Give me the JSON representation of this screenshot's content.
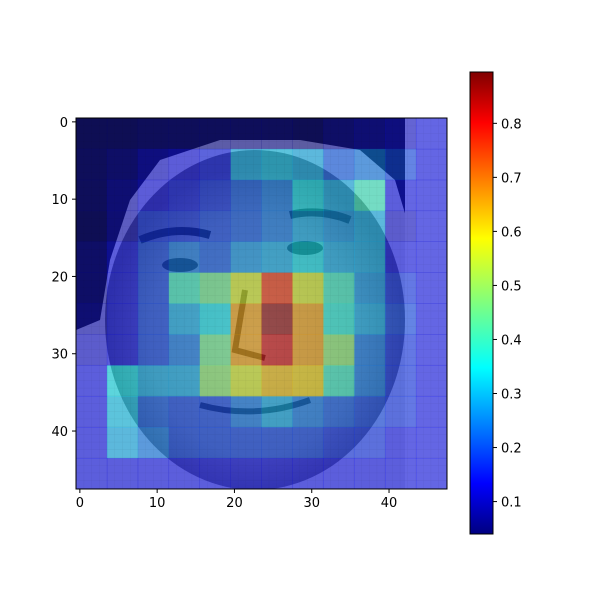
{
  "chart_data": {
    "type": "heatmap",
    "title": "",
    "xlabel": "",
    "ylabel": "",
    "xlim": [
      -0.5,
      47.5
    ],
    "ylim": [
      47.5,
      -0.5
    ],
    "x_ticks": [
      "0",
      "10",
      "20",
      "30",
      "40"
    ],
    "y_ticks": [
      "0",
      "10",
      "20",
      "30",
      "40"
    ],
    "background_image": "grayscale face photograph, 48x48 pixels, overlaid with a semi-transparent heatmap",
    "overlay_alpha": 0.5,
    "cell_size": 4,
    "grid_rows": 12,
    "grid_cols": 12,
    "values": [
      [
        0.05,
        0.05,
        0.06,
        0.06,
        0.06,
        0.06,
        0.06,
        0.05,
        0.08,
        0.1,
        0.12,
        0.15
      ],
      [
        0.06,
        0.08,
        0.12,
        0.14,
        0.16,
        0.3,
        0.32,
        0.3,
        0.22,
        0.25,
        0.2,
        0.15
      ],
      [
        0.06,
        0.1,
        0.14,
        0.16,
        0.18,
        0.22,
        0.25,
        0.35,
        0.3,
        0.4,
        0.15,
        0.15
      ],
      [
        0.05,
        0.1,
        0.18,
        0.18,
        0.2,
        0.22,
        0.25,
        0.3,
        0.28,
        0.3,
        0.12,
        0.15
      ],
      [
        0.08,
        0.15,
        0.2,
        0.25,
        0.22,
        0.28,
        0.3,
        0.35,
        0.3,
        0.3,
        0.15,
        0.15
      ],
      [
        0.08,
        0.15,
        0.2,
        0.4,
        0.45,
        0.55,
        0.75,
        0.55,
        0.4,
        0.28,
        0.18,
        0.15
      ],
      [
        0.1,
        0.15,
        0.2,
        0.3,
        0.35,
        0.65,
        0.88,
        0.65,
        0.38,
        0.3,
        0.2,
        0.15
      ],
      [
        0.12,
        0.15,
        0.2,
        0.25,
        0.45,
        0.65,
        0.82,
        0.65,
        0.48,
        0.25,
        0.18,
        0.15
      ],
      [
        0.15,
        0.35,
        0.3,
        0.3,
        0.48,
        0.55,
        0.62,
        0.6,
        0.4,
        0.25,
        0.18,
        0.15
      ],
      [
        0.15,
        0.32,
        0.22,
        0.2,
        0.2,
        0.25,
        0.3,
        0.25,
        0.22,
        0.2,
        0.18,
        0.15
      ],
      [
        0.15,
        0.3,
        0.25,
        0.2,
        0.2,
        0.2,
        0.2,
        0.2,
        0.18,
        0.18,
        0.15,
        0.15
      ],
      [
        0.15,
        0.15,
        0.15,
        0.15,
        0.15,
        0.15,
        0.15,
        0.15,
        0.15,
        0.15,
        0.15,
        0.15
      ]
    ],
    "colormap": "jet",
    "colorbar": {
      "min": 0.04,
      "max": 0.895,
      "ticks": [
        "0.1",
        "0.2",
        "0.3",
        "0.4",
        "0.5",
        "0.6",
        "0.7",
        "0.8"
      ]
    },
    "grid": false,
    "legend": "none"
  }
}
